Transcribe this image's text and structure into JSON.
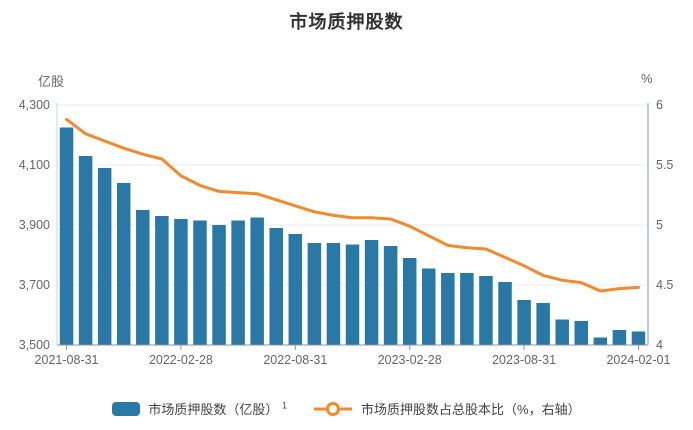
{
  "title": "市场质押股数",
  "left_axis": {
    "unit": "亿股",
    "tick_labels": [
      "4,300",
      "4,100",
      "3,900",
      "3,700",
      "3,500"
    ],
    "min": 3500,
    "max": 4300
  },
  "right_axis": {
    "unit": "%",
    "tick_labels": [
      "6",
      "5.5",
      "5",
      "4.5",
      "4"
    ],
    "min": 4,
    "max": 6
  },
  "x_axis": {
    "tick_labels": [
      "2021-08-31",
      "2022-02-28",
      "2022-08-31",
      "2023-02-28",
      "2023-08-31",
      "2024-02-01"
    ],
    "tick_category_indexes": [
      0,
      6,
      12,
      18,
      24,
      30
    ]
  },
  "legend": {
    "bar_label": "市场质押股数（亿股）",
    "bar_label_superscript": "1",
    "line_label": "市场质押股数占总股本比（%，右轴）"
  },
  "colors": {
    "bar": "#2978A6",
    "line": "#F08A2D",
    "grid": "#E7EBF3",
    "axis_left_line": "#CBD5E6",
    "axis_dark_line": "#8C959E",
    "tick_text": "#666666",
    "title_text": "#333333",
    "legend_text": "#444444",
    "background": "#FFFFFF"
  },
  "chart_data": {
    "type": "bar",
    "title": "市场质押股数",
    "categories": [
      "2021-08-31",
      "2021-09-30",
      "2021-10-31",
      "2021-11-30",
      "2021-12-31",
      "2022-01-31",
      "2022-02-28",
      "2022-03-31",
      "2022-04-30",
      "2022-05-31",
      "2022-06-30",
      "2022-07-31",
      "2022-08-31",
      "2022-09-30",
      "2022-10-31",
      "2022-11-30",
      "2022-12-31",
      "2023-01-31",
      "2023-02-28",
      "2023-03-31",
      "2023-04-30",
      "2023-05-31",
      "2023-06-30",
      "2023-07-31",
      "2023-08-31",
      "2023-09-30",
      "2023-10-31",
      "2023-11-30",
      "2023-12-31",
      "2024-01-31",
      "2024-02-01"
    ],
    "series": [
      {
        "name": "市场质押股数（亿股）",
        "type": "bar",
        "axis": "left",
        "values": [
          4225,
          4130,
          4090,
          4040,
          3950,
          3930,
          3920,
          3915,
          3900,
          3915,
          3925,
          3890,
          3870,
          3840,
          3840,
          3835,
          3850,
          3830,
          3790,
          3755,
          3740,
          3740,
          3730,
          3710,
          3650,
          3640,
          3585,
          3580,
          3525,
          3550,
          3545
        ]
      },
      {
        "name": "市场质押股数占总股本比（%，右轴）",
        "type": "line",
        "axis": "right",
        "values": [
          5.88,
          5.76,
          5.7,
          5.64,
          5.59,
          5.55,
          5.41,
          5.33,
          5.28,
          5.27,
          5.26,
          5.21,
          5.16,
          5.11,
          5.08,
          5.06,
          5.06,
          5.05,
          4.99,
          4.91,
          4.83,
          4.81,
          4.8,
          4.73,
          4.66,
          4.58,
          4.54,
          4.52,
          4.45,
          4.47,
          4.48
        ]
      }
    ],
    "xlabel": "",
    "ylabel_left": "亿股",
    "ylabel_right": "%",
    "ylim_left": [
      3500,
      4300
    ],
    "ylim_right": [
      4,
      6
    ],
    "grid": true,
    "legend_position": "bottom"
  }
}
